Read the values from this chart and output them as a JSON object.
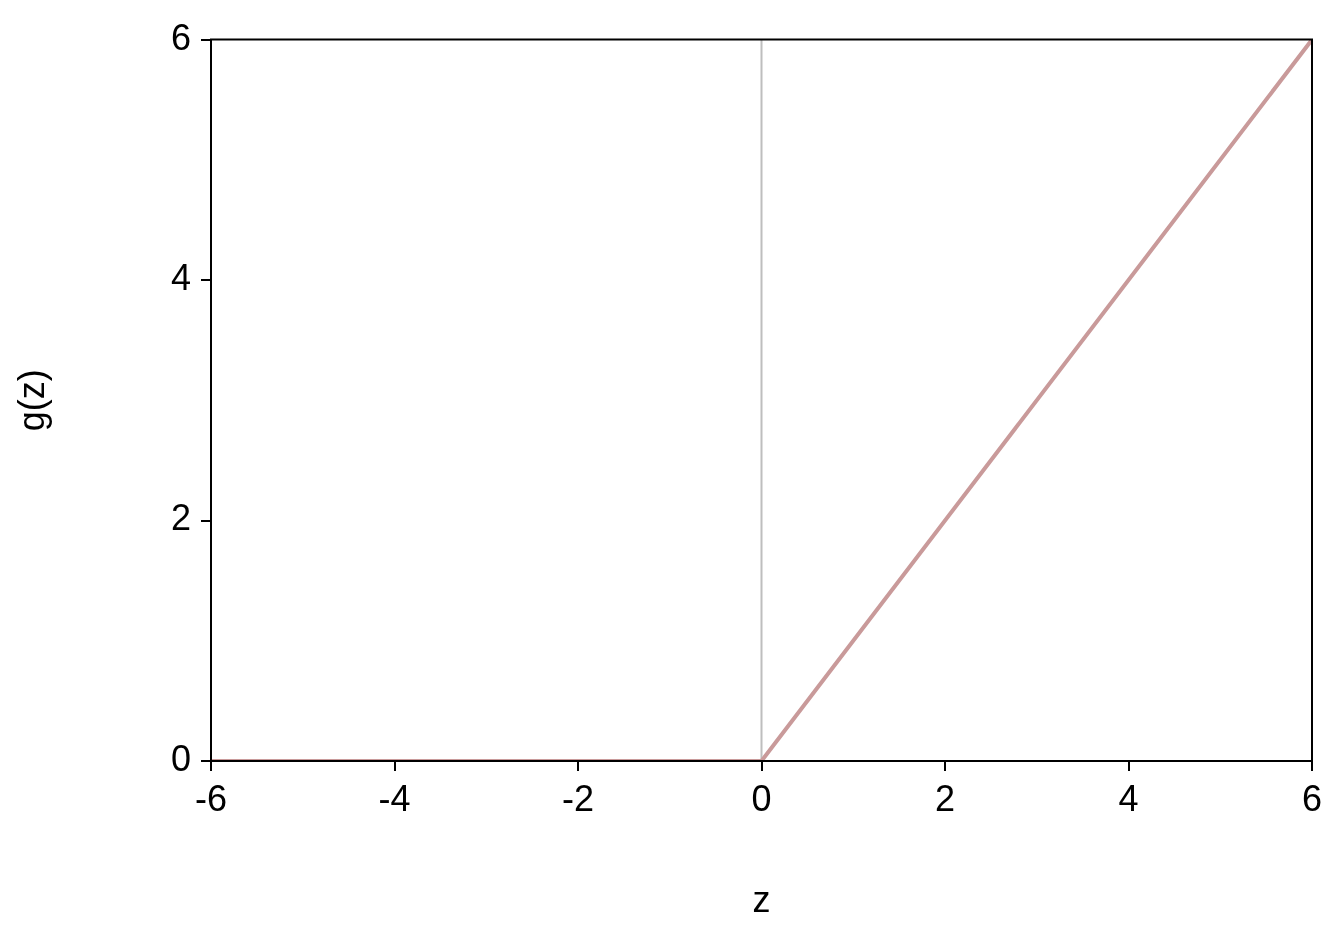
{
  "chart_data": {
    "type": "line",
    "xlabel": "z",
    "ylabel": "g(z)",
    "x": [
      -6,
      0,
      6
    ],
    "series": [
      {
        "color": "#c99a9a",
        "values": [
          0,
          0,
          6
        ]
      }
    ],
    "xlim": [
      -6,
      6
    ],
    "xticks": [
      -6,
      -4,
      -2,
      0,
      2,
      4,
      6
    ],
    "ylim": [
      0,
      6
    ],
    "yticks": [
      0,
      2,
      4,
      6
    ],
    "ref_lines": [
      {
        "axis": "x",
        "value": 0,
        "color": "#bebebe"
      }
    ],
    "grid": false,
    "legend": false,
    "marker": "none",
    "line_style": "solid"
  }
}
